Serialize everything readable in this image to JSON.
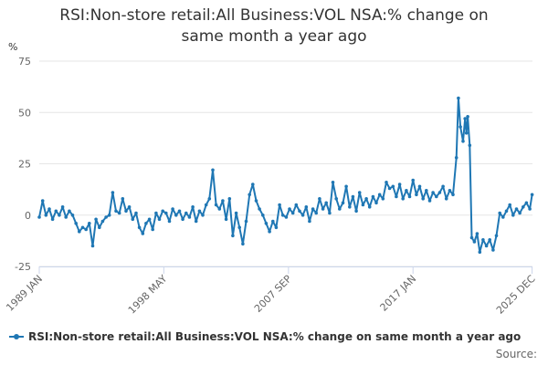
{
  "chart_data": {
    "type": "line",
    "title": "RSI:Non-store retail:All Business:VOL NSA:% change on\nsame month a year ago",
    "ylabel": "%",
    "xlabel": "",
    "ylim": [
      -25,
      75
    ],
    "yticks": [
      -25,
      0,
      25,
      50,
      75
    ],
    "xlim": [
      1989.0,
      2025.95
    ],
    "xticks": [
      {
        "label": "1989 JAN",
        "x": 1989.0
      },
      {
        "label": "1998 MAY",
        "x": 1998.33
      },
      {
        "label": "2007 SEP",
        "x": 2007.67
      },
      {
        "label": "2017 JAN",
        "x": 2017.0
      },
      {
        "label": "2025 DEC",
        "x": 2025.92
      }
    ],
    "grid": true,
    "legend_position": "bottom",
    "series": [
      {
        "name": "RSI:Non-store retail:All Business:VOL NSA:% change on same month a year ago",
        "color": "#1f77b4",
        "points": [
          [
            1989.0,
            -1
          ],
          [
            1989.25,
            7
          ],
          [
            1989.5,
            0
          ],
          [
            1989.75,
            3
          ],
          [
            1990.0,
            -2
          ],
          [
            1990.25,
            2
          ],
          [
            1990.5,
            0
          ],
          [
            1990.75,
            4
          ],
          [
            1991.0,
            -1
          ],
          [
            1991.25,
            2
          ],
          [
            1991.5,
            0
          ],
          [
            1991.75,
            -4
          ],
          [
            1992.0,
            -8
          ],
          [
            1992.25,
            -6
          ],
          [
            1992.5,
            -7
          ],
          [
            1992.75,
            -4
          ],
          [
            1993.0,
            -15
          ],
          [
            1993.25,
            -2
          ],
          [
            1993.5,
            -6
          ],
          [
            1993.75,
            -3
          ],
          [
            1994.0,
            -1
          ],
          [
            1994.25,
            0
          ],
          [
            1994.5,
            11
          ],
          [
            1994.75,
            2
          ],
          [
            1995.0,
            1
          ],
          [
            1995.25,
            8
          ],
          [
            1995.5,
            2
          ],
          [
            1995.75,
            4
          ],
          [
            1996.0,
            -2
          ],
          [
            1996.25,
            1
          ],
          [
            1996.5,
            -6
          ],
          [
            1996.75,
            -9
          ],
          [
            1997.0,
            -4
          ],
          [
            1997.25,
            -2
          ],
          [
            1997.5,
            -7
          ],
          [
            1997.75,
            1
          ],
          [
            1998.0,
            -2
          ],
          [
            1998.25,
            2
          ],
          [
            1998.5,
            1
          ],
          [
            1998.75,
            -3
          ],
          [
            1999.0,
            3
          ],
          [
            1999.25,
            0
          ],
          [
            1999.5,
            2
          ],
          [
            1999.75,
            -2
          ],
          [
            2000.0,
            1
          ],
          [
            2000.25,
            -1
          ],
          [
            2000.5,
            4
          ],
          [
            2000.75,
            -3
          ],
          [
            2001.0,
            2
          ],
          [
            2001.25,
            0
          ],
          [
            2001.5,
            5
          ],
          [
            2001.75,
            8
          ],
          [
            2002.0,
            22
          ],
          [
            2002.25,
            5
          ],
          [
            2002.5,
            3
          ],
          [
            2002.75,
            7
          ],
          [
            2003.0,
            -2
          ],
          [
            2003.25,
            8
          ],
          [
            2003.5,
            -10
          ],
          [
            2003.75,
            1
          ],
          [
            2004.0,
            -6
          ],
          [
            2004.25,
            -14
          ],
          [
            2004.5,
            -3
          ],
          [
            2004.75,
            10
          ],
          [
            2005.0,
            15
          ],
          [
            2005.25,
            7
          ],
          [
            2005.5,
            3
          ],
          [
            2005.75,
            0
          ],
          [
            2006.0,
            -4
          ],
          [
            2006.25,
            -8
          ],
          [
            2006.5,
            -3
          ],
          [
            2006.75,
            -6
          ],
          [
            2007.0,
            5
          ],
          [
            2007.25,
            0
          ],
          [
            2007.5,
            -1
          ],
          [
            2007.75,
            3
          ],
          [
            2008.0,
            1
          ],
          [
            2008.25,
            5
          ],
          [
            2008.5,
            2
          ],
          [
            2008.75,
            0
          ],
          [
            2009.0,
            4
          ],
          [
            2009.25,
            -3
          ],
          [
            2009.5,
            3
          ],
          [
            2009.75,
            1
          ],
          [
            2010.0,
            8
          ],
          [
            2010.25,
            3
          ],
          [
            2010.5,
            6
          ],
          [
            2010.75,
            1
          ],
          [
            2011.0,
            16
          ],
          [
            2011.25,
            8
          ],
          [
            2011.5,
            3
          ],
          [
            2011.75,
            6
          ],
          [
            2012.0,
            14
          ],
          [
            2012.25,
            4
          ],
          [
            2012.5,
            9
          ],
          [
            2012.75,
            2
          ],
          [
            2013.0,
            11
          ],
          [
            2013.25,
            5
          ],
          [
            2013.5,
            8
          ],
          [
            2013.75,
            4
          ],
          [
            2014.0,
            9
          ],
          [
            2014.25,
            6
          ],
          [
            2014.5,
            10
          ],
          [
            2014.75,
            8
          ],
          [
            2015.0,
            16
          ],
          [
            2015.25,
            13
          ],
          [
            2015.5,
            14
          ],
          [
            2015.75,
            9
          ],
          [
            2016.0,
            15
          ],
          [
            2016.25,
            8
          ],
          [
            2016.5,
            12
          ],
          [
            2016.75,
            9
          ],
          [
            2017.0,
            17
          ],
          [
            2017.25,
            10
          ],
          [
            2017.5,
            14
          ],
          [
            2017.75,
            8
          ],
          [
            2018.0,
            12
          ],
          [
            2018.25,
            7
          ],
          [
            2018.5,
            11
          ],
          [
            2018.75,
            9
          ],
          [
            2019.0,
            11
          ],
          [
            2019.25,
            14
          ],
          [
            2019.5,
            8
          ],
          [
            2019.75,
            12
          ],
          [
            2020.0,
            10
          ],
          [
            2020.25,
            28
          ],
          [
            2020.4,
            57
          ],
          [
            2020.55,
            43
          ],
          [
            2020.75,
            36
          ],
          [
            2020.9,
            47
          ],
          [
            2021.0,
            40
          ],
          [
            2021.1,
            48
          ],
          [
            2021.25,
            34
          ],
          [
            2021.4,
            -11
          ],
          [
            2021.6,
            -13
          ],
          [
            2021.8,
            -9
          ],
          [
            2022.0,
            -18
          ],
          [
            2022.25,
            -12
          ],
          [
            2022.5,
            -15
          ],
          [
            2022.75,
            -12
          ],
          [
            2023.0,
            -17
          ],
          [
            2023.25,
            -10
          ],
          [
            2023.5,
            1
          ],
          [
            2023.75,
            -1
          ],
          [
            2024.0,
            2
          ],
          [
            2024.25,
            5
          ],
          [
            2024.5,
            0
          ],
          [
            2024.75,
            3
          ],
          [
            2025.0,
            1
          ],
          [
            2025.25,
            4
          ],
          [
            2025.5,
            6
          ],
          [
            2025.75,
            3
          ],
          [
            2025.92,
            10
          ]
        ]
      }
    ],
    "source_label": "Source:"
  }
}
